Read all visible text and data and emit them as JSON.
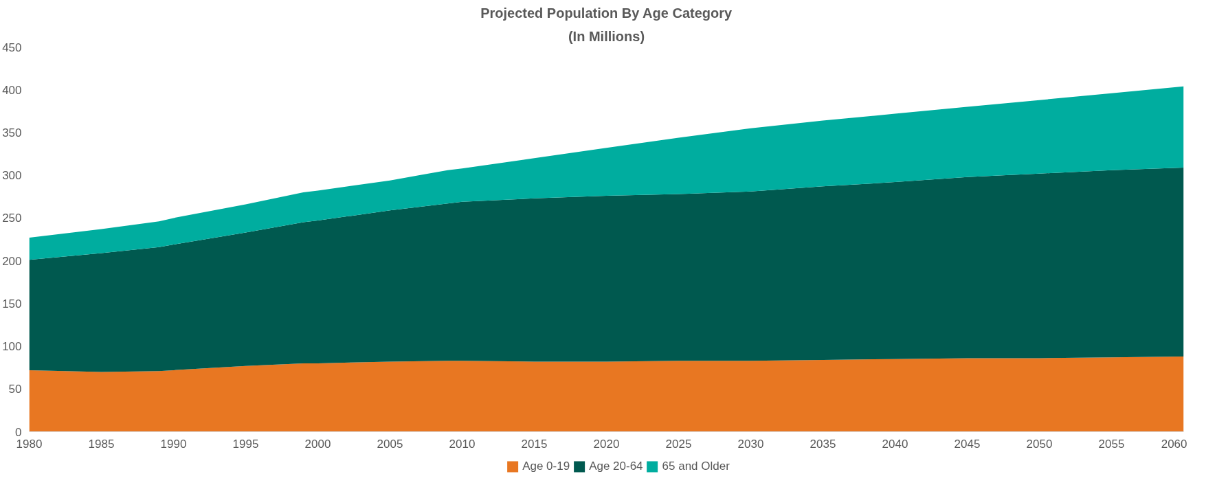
{
  "chart_data": {
    "type": "area",
    "stacked": true,
    "title": "Projected Population By Age Category",
    "subtitle": "(In Millions)",
    "x": [
      1980,
      1985,
      1989,
      1990,
      1995,
      1999,
      2000,
      2005,
      2009,
      2010,
      2015,
      2020,
      2025,
      2030,
      2035,
      2040,
      2045,
      2050,
      2055,
      2060
    ],
    "series": [
      {
        "name": "Age 0-19",
        "color": "#e87722",
        "values": [
          72,
          70,
          71,
          72,
          77,
          80,
          80,
          82,
          83,
          83,
          82,
          82,
          83,
          83,
          84,
          85,
          86,
          86,
          87,
          88
        ]
      },
      {
        "name": "Age 20-64",
        "color": "#00594f",
        "values": [
          129,
          139,
          145,
          147,
          156,
          165,
          167,
          177,
          184,
          186,
          191,
          194,
          195,
          198,
          203,
          207,
          212,
          216,
          219,
          221
        ]
      },
      {
        "name": "65 and Older",
        "color": "#00ad9f",
        "values": [
          26,
          28,
          30,
          31,
          33,
          35,
          35,
          35,
          39,
          39,
          47,
          56,
          66,
          74,
          77,
          80,
          82,
          86,
          90,
          95
        ]
      }
    ],
    "xlim": [
      1980,
      2060
    ],
    "xticks": [
      1980,
      1985,
      1990,
      1995,
      2000,
      2005,
      2010,
      2015,
      2020,
      2025,
      2030,
      2035,
      2040,
      2045,
      2050,
      2055,
      2060
    ],
    "ylim": [
      0,
      450
    ],
    "yticks": [
      0,
      50,
      100,
      150,
      200,
      250,
      300,
      350,
      400,
      450
    ],
    "grid": false,
    "legend": "bottom"
  }
}
